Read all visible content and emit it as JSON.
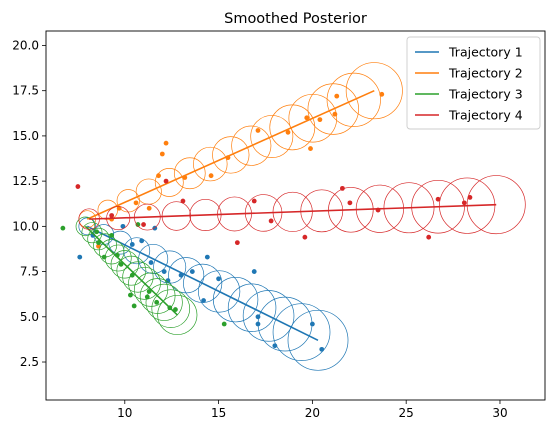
{
  "chart_data": {
    "type": "scatter",
    "title": "Smoothed Posterior",
    "xlabel": "",
    "ylabel": "",
    "xlim": [
      5.8,
      32.4
    ],
    "ylim": [
      0.4,
      20.8
    ],
    "xticks": [
      10,
      15,
      20,
      25,
      30
    ],
    "yticks": [
      2.5,
      5.0,
      7.5,
      10.0,
      12.5,
      15.0,
      17.5,
      20.0
    ],
    "xtick_labels": [
      "10",
      "15",
      "20",
      "25",
      "30"
    ],
    "ytick_labels": [
      "2.5",
      "5.0",
      "7.5",
      "10.0",
      "12.5",
      "15.0",
      "17.5",
      "20.0"
    ],
    "grid": false,
    "legend_position": "top-right",
    "series": [
      {
        "name": "Trajectory 1",
        "color": "#1f77b4",
        "line_start": [
          8.0,
          10.0
        ],
        "line_end": [
          20.3,
          3.7
        ],
        "circle_radii": [
          0.45,
          1.6
        ],
        "observations": [
          [
            7.6,
            8.3
          ],
          [
            8.3,
            9.5
          ],
          [
            9.9,
            10.0
          ],
          [
            10.4,
            9.0
          ],
          [
            10.9,
            9.2
          ],
          [
            11.4,
            8.0
          ],
          [
            11.6,
            9.9
          ],
          [
            12.1,
            7.5
          ],
          [
            12.3,
            7.0
          ],
          [
            13.0,
            7.3
          ],
          [
            13.6,
            7.5
          ],
          [
            14.2,
            5.9
          ],
          [
            14.4,
            8.3
          ],
          [
            15.0,
            7.1
          ],
          [
            16.9,
            7.5
          ],
          [
            17.1,
            5.0
          ],
          [
            17.1,
            4.6
          ],
          [
            18.0,
            3.4
          ],
          [
            20.0,
            4.6
          ],
          [
            20.5,
            3.2
          ]
        ]
      },
      {
        "name": "Trajectory 2",
        "color": "#ff7f0e",
        "line_start": [
          8.0,
          10.4
        ],
        "line_end": [
          23.3,
          17.5
        ],
        "circle_radii": [
          0.45,
          1.5
        ],
        "observations": [
          [
            8.6,
            8.9
          ],
          [
            9.3,
            10.4
          ],
          [
            9.7,
            11.0
          ],
          [
            10.6,
            11.3
          ],
          [
            11.3,
            11.0
          ],
          [
            11.8,
            12.8
          ],
          [
            12.0,
            14.0
          ],
          [
            12.2,
            14.6
          ],
          [
            13.2,
            12.7
          ],
          [
            14.6,
            12.8
          ],
          [
            15.5,
            13.8
          ],
          [
            17.1,
            15.3
          ],
          [
            18.7,
            15.2
          ],
          [
            19.7,
            16.0
          ],
          [
            19.9,
            14.3
          ],
          [
            20.4,
            15.9
          ],
          [
            21.2,
            16.2
          ],
          [
            21.3,
            17.2
          ],
          [
            23.7,
            17.3
          ]
        ]
      },
      {
        "name": "Trajectory 3",
        "color": "#2ca02c",
        "line_start": [
          7.9,
          10.0
        ],
        "line_end": [
          12.8,
          5.1
        ],
        "circle_radii": [
          0.5,
          1.05
        ],
        "observations": [
          [
            6.7,
            9.9
          ],
          [
            8.5,
            9.7
          ],
          [
            8.6,
            9.1
          ],
          [
            8.9,
            8.3
          ],
          [
            9.3,
            9.5
          ],
          [
            9.6,
            8.4
          ],
          [
            9.8,
            7.9
          ],
          [
            10.3,
            6.2
          ],
          [
            10.4,
            7.3
          ],
          [
            10.5,
            5.6
          ],
          [
            10.7,
            10.1
          ],
          [
            11.2,
            6.1
          ],
          [
            11.3,
            6.4
          ],
          [
            11.7,
            5.8
          ],
          [
            12.4,
            5.5
          ],
          [
            12.7,
            5.4
          ],
          [
            15.3,
            4.6
          ]
        ]
      },
      {
        "name": "Trajectory 4",
        "color": "#d62728",
        "line_start": [
          8.1,
          10.4
        ],
        "line_end": [
          29.8,
          11.2
        ],
        "circle_radii": [
          0.55,
          1.55
        ],
        "observations": [
          [
            7.5,
            12.2
          ],
          [
            9.3,
            10.6
          ],
          [
            11.0,
            10.1
          ],
          [
            12.2,
            12.5
          ],
          [
            13.1,
            11.4
          ],
          [
            16.0,
            9.1
          ],
          [
            16.9,
            11.4
          ],
          [
            17.8,
            10.3
          ],
          [
            19.6,
            9.4
          ],
          [
            21.6,
            12.1
          ],
          [
            22.0,
            11.3
          ],
          [
            23.5,
            10.9
          ],
          [
            26.2,
            9.4
          ],
          [
            26.7,
            11.5
          ],
          [
            28.1,
            11.3
          ],
          [
            28.4,
            11.6
          ]
        ]
      }
    ]
  }
}
